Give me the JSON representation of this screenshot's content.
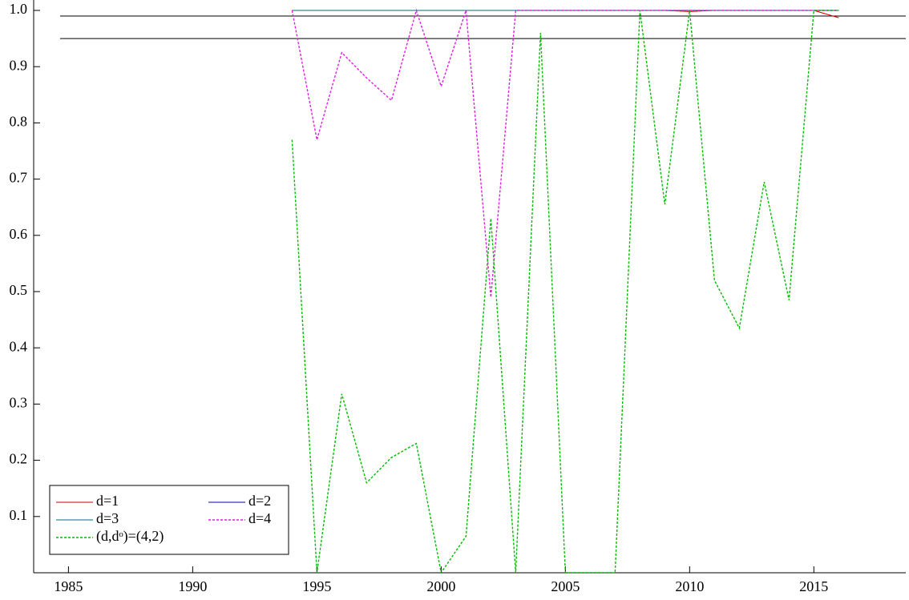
{
  "chart_data": {
    "type": "line",
    "x": [
      1994,
      1995,
      1996,
      1997,
      1998,
      1999,
      2000,
      2001,
      2002,
      2003,
      2004,
      2005,
      2006,
      2007,
      2008,
      2009,
      2010,
      2011,
      2012,
      2013,
      2014,
      2015,
      2016
    ],
    "series": [
      {
        "name": "d=1",
        "color": "#cc0000",
        "dash": "none",
        "values": [
          1,
          1,
          1,
          1,
          1,
          1,
          1,
          1,
          1,
          1,
          1,
          1,
          1,
          1,
          1,
          1,
          0.998,
          1,
          1,
          1,
          1,
          1,
          0.987
        ]
      },
      {
        "name": "d=2",
        "color": "#0000aa",
        "dash": "none",
        "values": [
          1,
          1,
          1,
          1,
          1,
          1,
          1,
          1,
          1,
          1,
          1,
          1,
          1,
          1,
          1,
          1,
          1,
          1,
          1,
          1,
          1,
          1,
          1
        ]
      },
      {
        "name": "d=3",
        "color": "#006f7f",
        "dash": "none",
        "values": [
          1,
          1,
          1,
          1,
          1,
          1,
          1,
          1,
          1,
          1,
          1,
          1,
          1,
          1,
          1,
          1,
          1,
          1,
          1,
          1,
          1,
          1,
          1
        ]
      },
      {
        "name": "d=4",
        "color": "#e020e0",
        "dash": "3,2",
        "values": [
          1,
          0.77,
          0.925,
          0.88,
          0.84,
          1,
          0.865,
          1,
          0.49,
          1,
          1,
          1,
          1,
          1,
          1,
          1,
          1,
          1,
          1,
          1,
          1,
          1,
          1
        ]
      },
      {
        "name": "(d,dᵒ)=(4,2)",
        "color": "#00bb00",
        "dash": "3,2",
        "values": [
          0.77,
          0,
          0.318,
          0.16,
          0.205,
          0.23,
          0,
          0.065,
          0.63,
          0,
          0.96,
          0,
          0,
          0,
          1,
          0.655,
          1,
          0.52,
          0.435,
          0.695,
          0.485,
          1,
          1
        ]
      }
    ],
    "hlines": [
      0.99,
      0.95
    ],
    "xlim": [
      1983.6,
      2018.7
    ],
    "ylim": [
      0,
      1.0
    ],
    "xticks": [
      1985,
      1990,
      1995,
      2000,
      2005,
      2010,
      2015
    ],
    "yticks": [
      0.1,
      0.2,
      0.3,
      0.4,
      0.5,
      0.6,
      0.7,
      0.8,
      0.9,
      {
        "value": 1,
        "label": "1.0"
      }
    ],
    "legend": "lower left"
  }
}
